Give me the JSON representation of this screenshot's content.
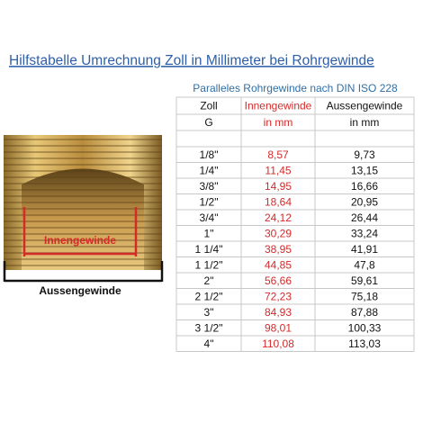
{
  "title": "Hilfstabelle Umrechnung Zoll in Millimeter bei Rohrgewinde",
  "image": {
    "inner_label": "Innengewinde",
    "outer_label": "Aussengewinde"
  },
  "table": {
    "caption": "Paralleles Rohrgewinde nach DIN ISO 228",
    "header": [
      [
        "Zoll",
        "Innengewinde",
        "Aussengewinde"
      ],
      [
        "G",
        "in mm",
        "in mm"
      ]
    ],
    "rows": [
      [
        "1/8\"",
        "8,57",
        "9,73"
      ],
      [
        "1/4\"",
        "11,45",
        "13,15"
      ],
      [
        "3/8\"",
        "14,95",
        "16,66"
      ],
      [
        "1/2\"",
        "18,64",
        "20,95"
      ],
      [
        "3/4\"",
        "24,12",
        "26,44"
      ],
      [
        "1\"",
        "30,29",
        "33,24"
      ],
      [
        "1 1/4\"",
        "38,95",
        "41,91"
      ],
      [
        "1 1/2\"",
        "44,85",
        "47,8"
      ],
      [
        "2\"",
        "56,66",
        "59,61"
      ],
      [
        "2 1/2\"",
        "72,23",
        "75,18"
      ],
      [
        "3\"",
        "84,93",
        "87,88"
      ],
      [
        "3 1/2\"",
        "98,01",
        "100,33"
      ],
      [
        "4\"",
        "110,08",
        "113,03"
      ]
    ]
  }
}
